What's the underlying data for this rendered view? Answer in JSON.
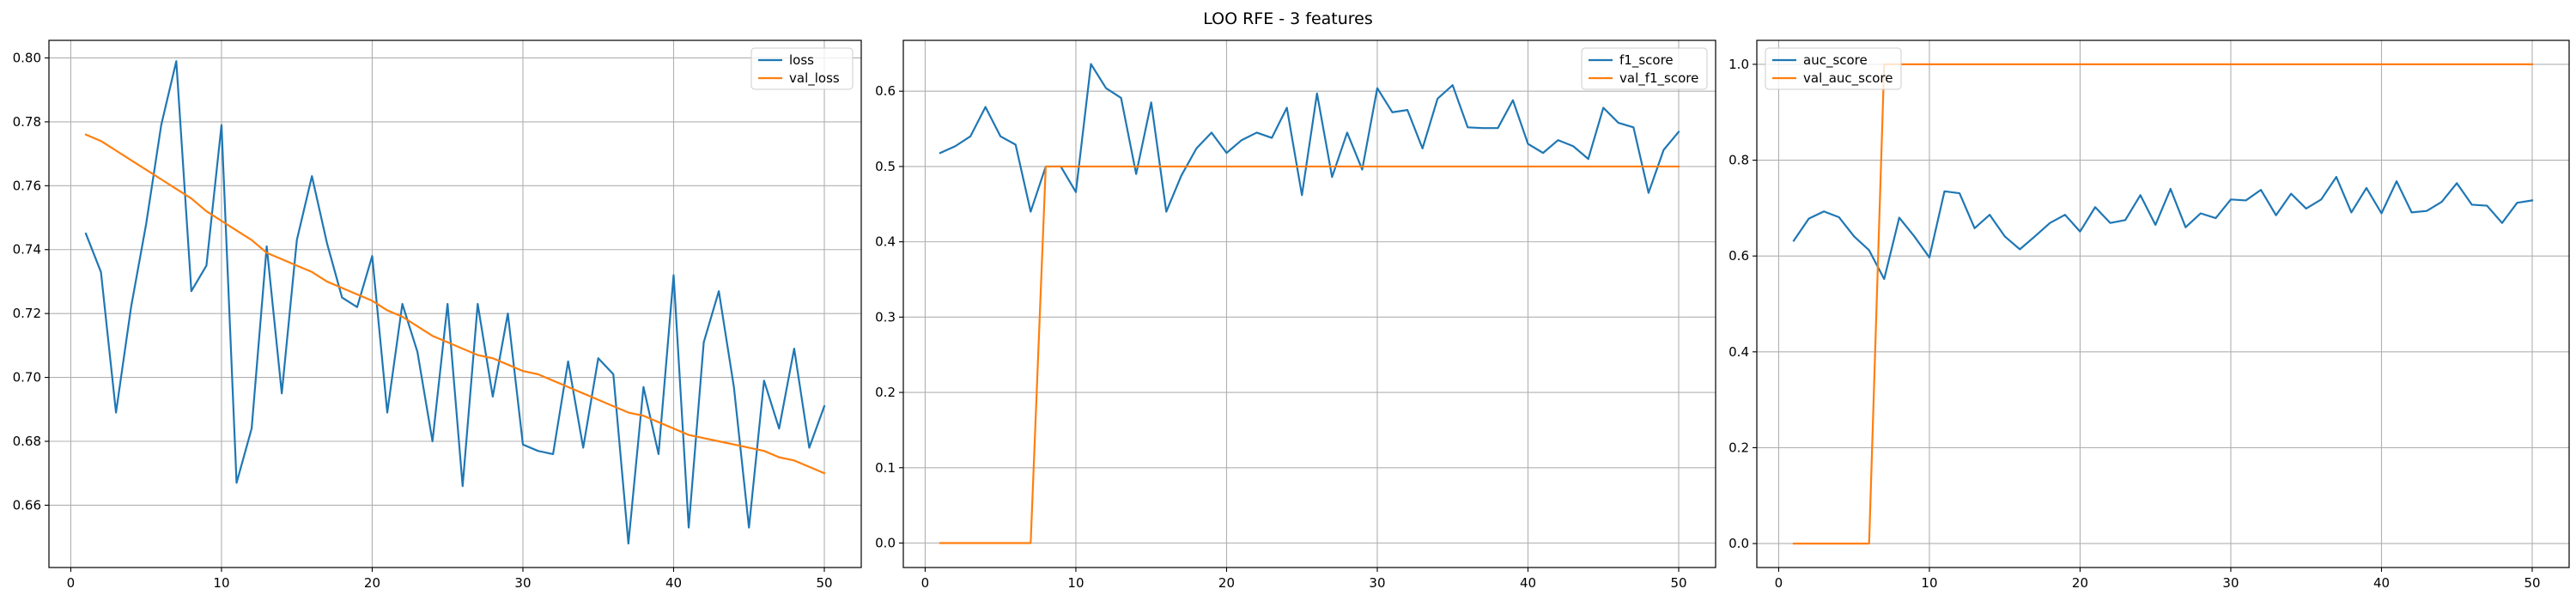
{
  "figure": {
    "suptitle": "LOO RFE - 3 features"
  },
  "colors": {
    "series1": "#1f77b4",
    "series2": "#ff7f0e",
    "grid": "#b0b0b0",
    "axes": "#000000"
  },
  "chart_data": [
    {
      "type": "line",
      "title": "",
      "xlabel": "",
      "ylabel": "",
      "xlim": [
        -1.45,
        52.45
      ],
      "ylim": [
        0.6405,
        0.8055
      ],
      "xticks": [
        0,
        10,
        20,
        30,
        40,
        50
      ],
      "yticks": [
        0.66,
        0.68,
        0.7,
        0.72,
        0.74,
        0.76,
        0.78,
        0.8
      ],
      "ytick_labels": [
        "0.66",
        "0.68",
        "0.70",
        "0.72",
        "0.74",
        "0.76",
        "0.78",
        "0.80"
      ],
      "grid": true,
      "legend_position": "top-right",
      "x": [
        1,
        2,
        3,
        4,
        5,
        6,
        7,
        8,
        9,
        10,
        11,
        12,
        13,
        14,
        15,
        16,
        17,
        18,
        19,
        20,
        21,
        22,
        23,
        24,
        25,
        26,
        27,
        28,
        29,
        30,
        31,
        32,
        33,
        34,
        35,
        36,
        37,
        38,
        39,
        40,
        41,
        42,
        43,
        44,
        45,
        46,
        47,
        48,
        49,
        50
      ],
      "series": [
        {
          "name": "loss",
          "values": [
            0.745,
            0.733,
            0.689,
            0.722,
            0.748,
            0.779,
            0.799,
            0.727,
            0.735,
            0.779,
            0.667,
            0.684,
            0.741,
            0.695,
            0.743,
            0.763,
            0.742,
            0.725,
            0.722,
            0.738,
            0.689,
            0.723,
            0.708,
            0.68,
            0.723,
            0.666,
            0.723,
            0.694,
            0.72,
            0.679,
            0.677,
            0.676,
            0.705,
            0.678,
            0.706,
            0.701,
            0.648,
            0.697,
            0.676,
            0.732,
            0.653,
            0.711,
            0.727,
            0.697,
            0.653,
            0.699,
            0.684,
            0.709,
            0.678,
            0.691
          ]
        },
        {
          "name": "val_loss",
          "values": [
            0.776,
            0.774,
            0.771,
            0.768,
            0.765,
            0.762,
            0.759,
            0.756,
            0.752,
            0.749,
            0.746,
            0.743,
            0.739,
            0.737,
            0.735,
            0.733,
            0.73,
            0.728,
            0.726,
            0.724,
            0.721,
            0.719,
            0.716,
            0.713,
            0.711,
            0.709,
            0.707,
            0.706,
            0.704,
            0.702,
            0.701,
            0.699,
            0.697,
            0.695,
            0.693,
            0.691,
            0.689,
            0.688,
            0.686,
            0.684,
            0.682,
            0.681,
            0.68,
            0.679,
            0.678,
            0.677,
            0.675,
            0.674,
            0.672,
            0.67
          ]
        }
      ]
    },
    {
      "type": "line",
      "title": "",
      "xlabel": "",
      "ylabel": "",
      "xlim": [
        -1.45,
        52.45
      ],
      "ylim": [
        -0.0325,
        0.6675
      ],
      "xticks": [
        0,
        10,
        20,
        30,
        40,
        50
      ],
      "yticks": [
        0.0,
        0.1,
        0.2,
        0.3,
        0.4,
        0.5,
        0.6
      ],
      "ytick_labels": [
        "0.0",
        "0.1",
        "0.2",
        "0.3",
        "0.4",
        "0.5",
        "0.6"
      ],
      "grid": true,
      "legend_position": "top-right",
      "x": [
        1,
        2,
        3,
        4,
        5,
        6,
        7,
        8,
        9,
        10,
        11,
        12,
        13,
        14,
        15,
        16,
        17,
        18,
        19,
        20,
        21,
        22,
        23,
        24,
        25,
        26,
        27,
        28,
        29,
        30,
        31,
        32,
        33,
        34,
        35,
        36,
        37,
        38,
        39,
        40,
        41,
        42,
        43,
        44,
        45,
        46,
        47,
        48,
        49,
        50
      ],
      "series": [
        {
          "name": "f1_score",
          "values": [
            0.518,
            0.527,
            0.54,
            0.579,
            0.54,
            0.529,
            0.44,
            0.5,
            0.5,
            0.466,
            0.636,
            0.604,
            0.591,
            0.49,
            0.585,
            0.44,
            0.488,
            0.524,
            0.545,
            0.518,
            0.535,
            0.545,
            0.538,
            0.578,
            0.462,
            0.597,
            0.486,
            0.545,
            0.496,
            0.604,
            0.572,
            0.575,
            0.524,
            0.59,
            0.608,
            0.552,
            0.551,
            0.551,
            0.588,
            0.53,
            0.518,
            0.535,
            0.527,
            0.51,
            0.578,
            0.558,
            0.552,
            0.465,
            0.522,
            0.546
          ]
        },
        {
          "name": "val_f1_score",
          "values": [
            0,
            0,
            0,
            0,
            0,
            0,
            0,
            0.5,
            0.5,
            0.5,
            0.5,
            0.5,
            0.5,
            0.5,
            0.5,
            0.5,
            0.5,
            0.5,
            0.5,
            0.5,
            0.5,
            0.5,
            0.5,
            0.5,
            0.5,
            0.5,
            0.5,
            0.5,
            0.5,
            0.5,
            0.5,
            0.5,
            0.5,
            0.5,
            0.5,
            0.5,
            0.5,
            0.5,
            0.5,
            0.5,
            0.5,
            0.5,
            0.5,
            0.5,
            0.5,
            0.5,
            0.5,
            0.5,
            0.5,
            0.5
          ]
        }
      ]
    },
    {
      "type": "line",
      "title": "",
      "xlabel": "",
      "ylabel": "",
      "xlim": [
        -1.45,
        52.45
      ],
      "ylim": [
        -0.05,
        1.05
      ],
      "xticks": [
        0,
        10,
        20,
        30,
        40,
        50
      ],
      "yticks": [
        0.0,
        0.2,
        0.4,
        0.6,
        0.8,
        1.0
      ],
      "ytick_labels": [
        "0.0",
        "0.2",
        "0.4",
        "0.6",
        "0.8",
        "1.0"
      ],
      "grid": true,
      "legend_position": "top-left",
      "x": [
        1,
        2,
        3,
        4,
        5,
        6,
        7,
        8,
        9,
        10,
        11,
        12,
        13,
        14,
        15,
        16,
        17,
        18,
        19,
        20,
        21,
        22,
        23,
        24,
        25,
        26,
        27,
        28,
        29,
        30,
        31,
        32,
        33,
        34,
        35,
        36,
        37,
        38,
        39,
        40,
        41,
        42,
        43,
        44,
        45,
        46,
        47,
        48,
        49,
        50
      ],
      "series": [
        {
          "name": "auc_score",
          "values": [
            0.632,
            0.678,
            0.693,
            0.681,
            0.641,
            0.612,
            0.552,
            0.68,
            0.641,
            0.597,
            0.735,
            0.731,
            0.658,
            0.686,
            0.641,
            0.614,
            0.641,
            0.669,
            0.686,
            0.651,
            0.702,
            0.669,
            0.675,
            0.727,
            0.665,
            0.74,
            0.66,
            0.689,
            0.679,
            0.718,
            0.716,
            0.738,
            0.685,
            0.73,
            0.699,
            0.718,
            0.765,
            0.691,
            0.742,
            0.689,
            0.756,
            0.691,
            0.694,
            0.713,
            0.752,
            0.707,
            0.705,
            0.669,
            0.711,
            0.716
          ]
        },
        {
          "name": "val_auc_score",
          "values": [
            0,
            0,
            0,
            0,
            0,
            0,
            1,
            1,
            1,
            1,
            1,
            1,
            1,
            1,
            1,
            1,
            1,
            1,
            1,
            1,
            1,
            1,
            1,
            1,
            1,
            1,
            1,
            1,
            1,
            1,
            1,
            1,
            1,
            1,
            1,
            1,
            1,
            1,
            1,
            1,
            1,
            1,
            1,
            1,
            1,
            1,
            1,
            1,
            1,
            1
          ]
        }
      ]
    }
  ]
}
